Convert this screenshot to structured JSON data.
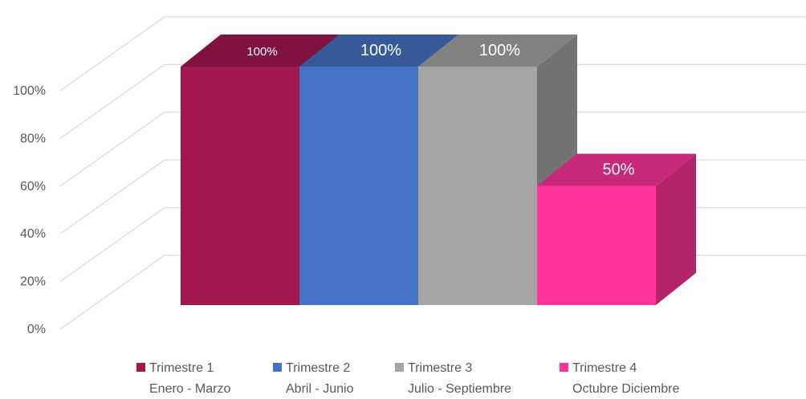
{
  "chart_data": {
    "type": "bar",
    "title": "",
    "xlabel": "",
    "ylabel": "",
    "ylim": [
      0,
      1
    ],
    "grid": true,
    "legend_position": "bottom",
    "yticks": [
      "0%",
      "20%",
      "40%",
      "60%",
      "80%",
      "100%"
    ],
    "series": [
      {
        "name": "Trimestre 1",
        "subtitle": "Enero - Marzo",
        "value": 1.0,
        "label": "100%",
        "color": "#A3174F"
      },
      {
        "name": "Trimestre 2",
        "subtitle": "Abril - Junio",
        "value": 1.0,
        "label": "100%",
        "color": "#4472C4"
      },
      {
        "name": "Trimestre 3",
        "subtitle": "Julio - Septiembre",
        "value": 1.0,
        "label": "100%",
        "color": "#A5A5A5"
      },
      {
        "name": "Trimestre 4",
        "subtitle": "Octubre Diciembre",
        "value": 0.5,
        "label": "50%",
        "color": "#FF3399"
      }
    ]
  }
}
